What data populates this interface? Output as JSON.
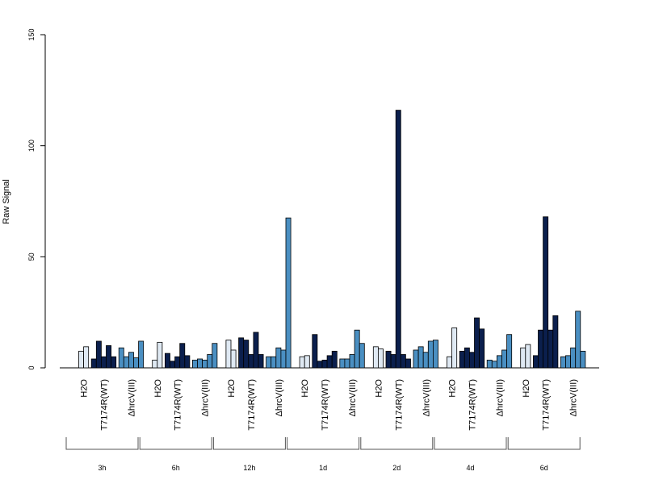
{
  "chart_data": {
    "type": "bar",
    "ylabel": "Raw Signal",
    "ylim": [
      0,
      150
    ],
    "y_ticks": [
      0,
      50,
      100,
      150
    ],
    "conditions": [
      "H2O",
      "T7174R(WT)",
      "ΔhrcV(III)"
    ],
    "condition_colors": [
      "#dfe9f3",
      "#0b1f4d",
      "#4a8fc2"
    ],
    "bar_border_color": "#000000",
    "timepoints": [
      {
        "label": "3h",
        "groups": [
          [
            7.5,
            9.5
          ],
          [
            4,
            12,
            5,
            10,
            5
          ],
          [
            9,
            5,
            7,
            4.5,
            12
          ]
        ]
      },
      {
        "label": "6h",
        "groups": [
          [
            3.5,
            11.5
          ],
          [
            6.5,
            3,
            5,
            11,
            5.5
          ],
          [
            3.5,
            4,
            3.5,
            6,
            11
          ]
        ]
      },
      {
        "label": "12h",
        "groups": [
          [
            12.5,
            8
          ],
          [
            13.5,
            12.5,
            6,
            16,
            6
          ],
          [
            5,
            5,
            9,
            8,
            67.5
          ]
        ]
      },
      {
        "label": "1d",
        "groups": [
          [
            5,
            5.5
          ],
          [
            15,
            3,
            3.5,
            5.5,
            7.5
          ],
          [
            4,
            4,
            6,
            17,
            11
          ]
        ]
      },
      {
        "label": "2d",
        "groups": [
          [
            9.5,
            8.5
          ],
          [
            7.5,
            6,
            116,
            6,
            4
          ],
          [
            8,
            9.5,
            7,
            12,
            12.5
          ]
        ]
      },
      {
        "label": "4d",
        "groups": [
          [
            5,
            18
          ],
          [
            7.5,
            9,
            7,
            22.5,
            17.5
          ],
          [
            3.5,
            3,
            5.5,
            8,
            15
          ]
        ]
      },
      {
        "label": "6d",
        "groups": [
          [
            9,
            10.5
          ],
          [
            5.5,
            17,
            68,
            17,
            23.5
          ],
          [
            5,
            5.5,
            9,
            25.5,
            7.5
          ]
        ]
      }
    ]
  }
}
